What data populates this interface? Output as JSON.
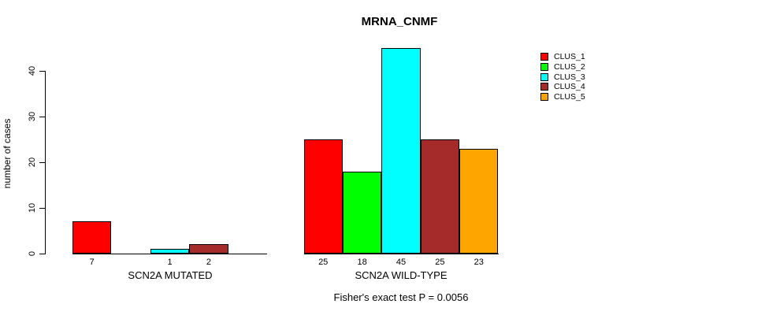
{
  "chart_data": {
    "type": "bar",
    "title": "MRNA_CNMF",
    "ylabel": "number of cases",
    "ylim": [
      0,
      45
    ],
    "yticks": [
      0,
      10,
      20,
      30,
      40
    ],
    "grid": false,
    "legend_position": "top-right",
    "series": [
      {
        "name": "CLUS_1",
        "color": "#ff0000"
      },
      {
        "name": "CLUS_2",
        "color": "#00ff00"
      },
      {
        "name": "CLUS_3",
        "color": "#00ffff"
      },
      {
        "name": "CLUS_4",
        "color": "#a52a2a"
      },
      {
        "name": "CLUS_5",
        "color": "#ffa500"
      }
    ],
    "groups": [
      {
        "label": "SCN2A MUTATED",
        "values": [
          7,
          0,
          1,
          2,
          0
        ]
      },
      {
        "label": "SCN2A WILD-TYPE",
        "values": [
          25,
          18,
          45,
          25,
          23
        ]
      }
    ],
    "annotation": "Fisher's exact test P = 0.0056"
  }
}
